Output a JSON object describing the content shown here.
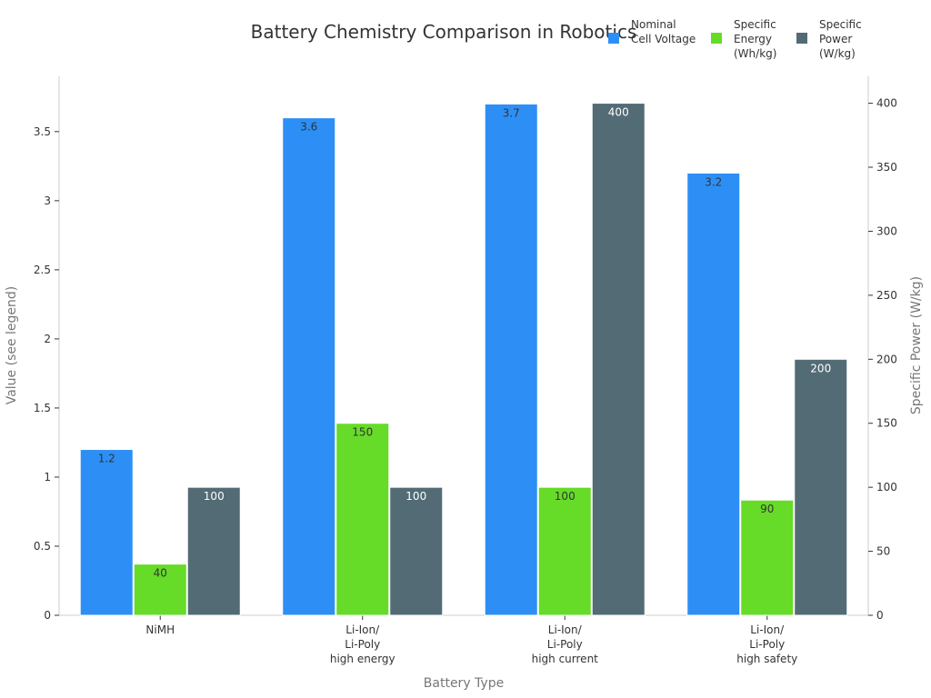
{
  "chart_data": {
    "type": "bar",
    "title": "Battery Chemistry Comparison in Robotics",
    "xlabel": "Battery Type",
    "ylabel_left": "Value (see legend)",
    "ylabel_right": "Specific Power (W/kg)",
    "categories": [
      [
        "NiMH"
      ],
      [
        "Li-Ion/",
        "Li-Poly",
        "high energy"
      ],
      [
        "Li-Ion/",
        "Li-Poly",
        "high current"
      ],
      [
        "Li-Ion/",
        "Li-Poly",
        "high safety"
      ]
    ],
    "ylim_left": [
      0,
      3.9
    ],
    "yticks_left": [
      0,
      0.5,
      1,
      1.5,
      2,
      2.5,
      3,
      3.5
    ],
    "ylim_right": [
      0,
      421
    ],
    "yticks_right": [
      0,
      50,
      100,
      150,
      200,
      250,
      300,
      350,
      400
    ],
    "grid": false,
    "legend_position": "top-right",
    "series": [
      {
        "name_lines": [
          "Nominal",
          "Cell Voltage"
        ],
        "axis": "left",
        "color": "#2d8ff5",
        "label_color": "#333333",
        "values": [
          1.2,
          3.6,
          3.7,
          3.2
        ],
        "labels": [
          "1.2",
          "3.6",
          "3.7",
          "3.2"
        ]
      },
      {
        "name_lines": [
          "Specific",
          "Energy",
          "(Wh/kg)"
        ],
        "axis": "right",
        "color": "#66db28",
        "label_color": "#333333",
        "values": [
          40,
          150,
          100,
          90
        ],
        "labels": [
          "40",
          "150",
          "100",
          "90"
        ]
      },
      {
        "name_lines": [
          "Specific",
          "Power",
          "(W/kg)"
        ],
        "axis": "right",
        "color": "#536b75",
        "label_color": "#ffffff",
        "values": [
          100,
          100,
          400,
          200
        ],
        "labels": [
          "100",
          "100",
          "400",
          "200"
        ]
      }
    ]
  }
}
